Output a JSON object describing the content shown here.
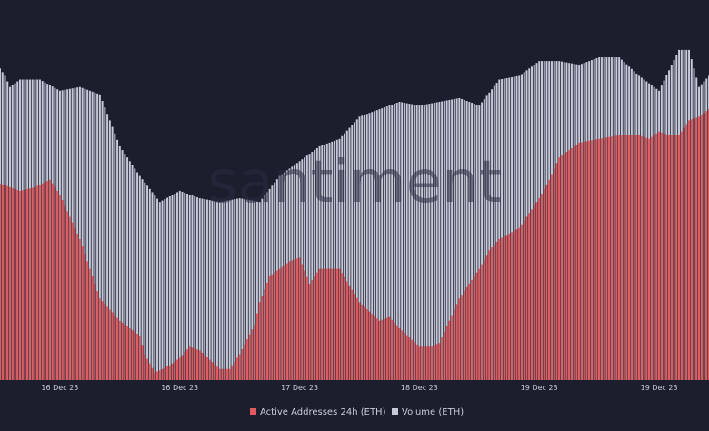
{
  "chart_data": {
    "type": "bar",
    "title": "",
    "watermark": "santiment",
    "xlabel": "",
    "ylabel": "",
    "grid": false,
    "legend_position": "bottom-center",
    "x_tick_labels": [
      "16 Dec 23",
      "16 Dec 23",
      "17 Dec 23",
      "18 Dec 23",
      "19 Dec 23",
      "19 Dec 23"
    ],
    "x_tick_hours": [
      0,
      12,
      24,
      36,
      48,
      60
    ],
    "x_range_hours": [
      -6,
      65
    ],
    "ylim": [
      0,
      100
    ],
    "colors": {
      "background": "#1c1e2e",
      "active_addresses": "#e05b5f",
      "volume": "#c6c9d8"
    },
    "series": [
      {
        "name": "Active Addresses 24h (ETH)",
        "color": "#e05b5f",
        "x": [
          -6,
          -4,
          -2.5,
          -1,
          0,
          2,
          4,
          6,
          8,
          8.5,
          9.5,
          11,
          12,
          13,
          14,
          16,
          17,
          18,
          19.5,
          20,
          21,
          22,
          23,
          24,
          25,
          26,
          28,
          30,
          32,
          33,
          34,
          36,
          37,
          38,
          40,
          42,
          43,
          44,
          46,
          48,
          49,
          50,
          52,
          54,
          56,
          58,
          59,
          60,
          61,
          62,
          63,
          64,
          65
        ],
        "values": [
          53,
          51,
          52,
          54,
          50,
          38,
          22,
          16,
          12,
          7,
          2,
          4,
          6,
          9,
          8,
          3,
          3,
          7,
          15,
          21,
          28,
          30,
          32,
          33,
          26,
          30,
          30,
          21,
          16,
          17,
          14,
          9,
          9,
          10,
          22,
          30,
          35,
          38,
          41,
          49,
          54,
          60,
          64,
          65,
          66,
          66,
          65,
          67,
          66,
          66,
          70,
          71,
          73
        ]
      },
      {
        "name": "Volume (ETH)",
        "color": "#c6c9d8",
        "x": [
          -6,
          -5.5,
          -5,
          -4,
          -2,
          0,
          2,
          4,
          6,
          8,
          10,
          12,
          14,
          16,
          18,
          20,
          22,
          24,
          26,
          28,
          30,
          32,
          34,
          36,
          38,
          40,
          42,
          44,
          46,
          48,
          50,
          52,
          54,
          56,
          58,
          60,
          62,
          63,
          64,
          65
        ],
        "values": [
          84,
          82,
          79,
          81,
          81,
          78,
          79,
          77,
          63,
          55,
          48,
          51,
          49,
          48,
          49,
          48,
          55,
          59,
          63,
          65,
          71,
          73,
          75,
          74,
          75,
          76,
          74,
          81,
          82,
          86,
          86,
          85,
          87,
          87,
          82,
          78,
          89,
          89,
          79,
          82
        ]
      }
    ]
  }
}
